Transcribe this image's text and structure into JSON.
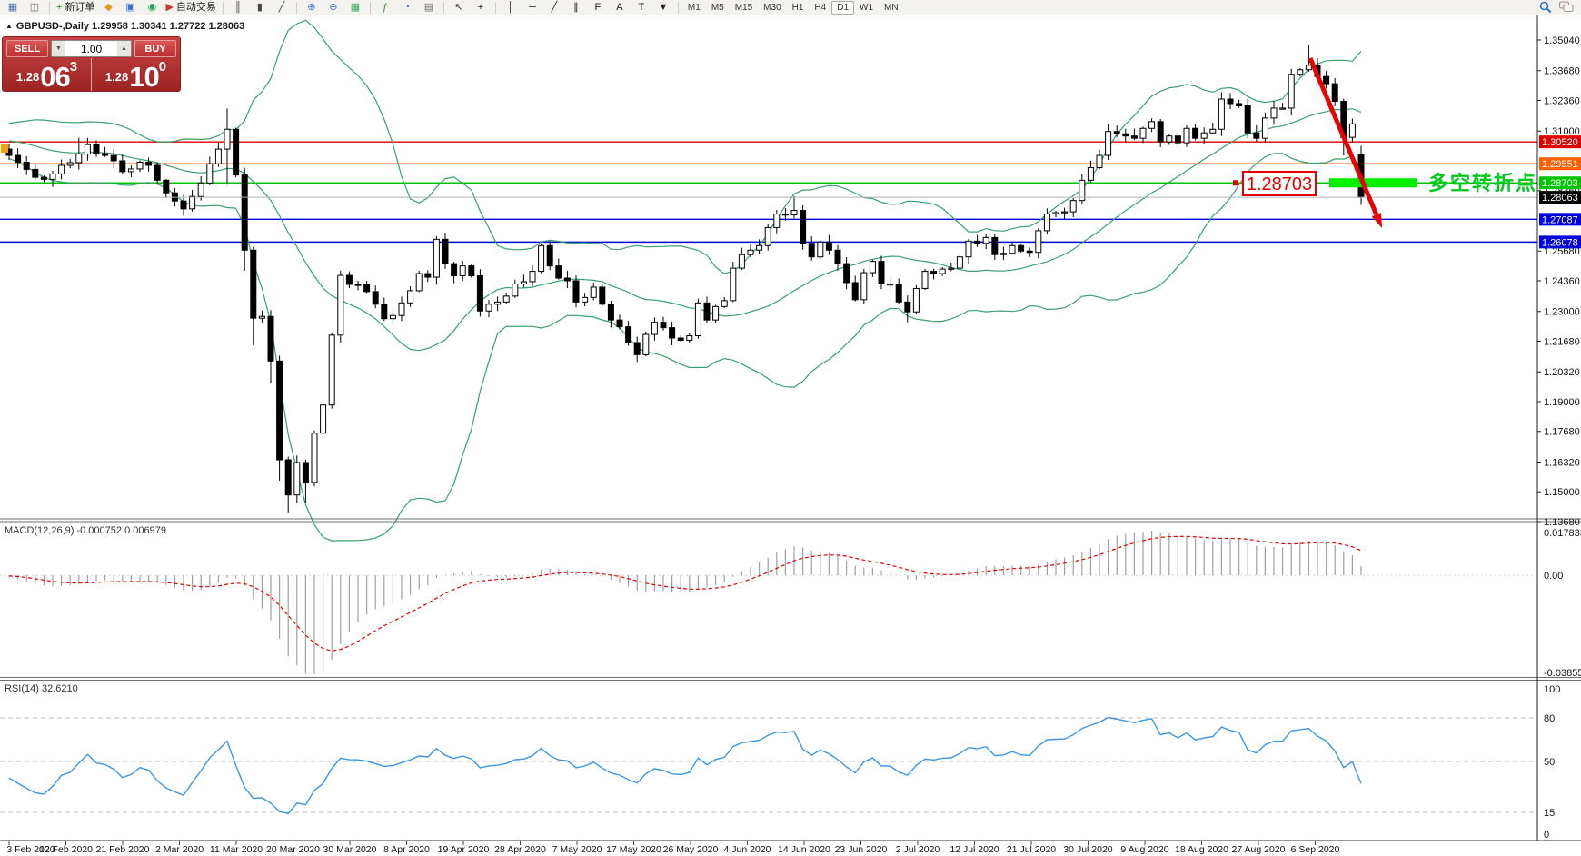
{
  "toolbar": {
    "items": [
      {
        "name": "new-chart",
        "glyph": "▦",
        "color": "#4a6fa5"
      },
      {
        "name": "chart-profiles",
        "glyph": "◫",
        "color": "#6b6b6b"
      },
      {
        "sep": true
      },
      {
        "name": "new-order",
        "glyph": "+",
        "color": "#1a9e1a",
        "label": "新订单"
      },
      {
        "name": "alerts",
        "glyph": "◆",
        "color": "#d8a017"
      },
      {
        "name": "terminal",
        "glyph": "▣",
        "color": "#3b6fd4"
      },
      {
        "name": "signals",
        "glyph": "◉",
        "color": "#2aa05a"
      },
      {
        "name": "autotrading",
        "glyph": "▶",
        "color": "#cc3333",
        "label": "自动交易"
      },
      {
        "sep": true
      },
      {
        "name": "bar-chart-mode",
        "glyph": "║",
        "color": "#444444"
      },
      {
        "name": "candle-chart-mode",
        "glyph": "▮",
        "color": "#444444"
      },
      {
        "name": "line-chart-mode",
        "glyph": "╱",
        "color": "#444444"
      },
      {
        "sep": true
      },
      {
        "name": "zoom-in",
        "glyph": "⊕",
        "color": "#3b6fd4"
      },
      {
        "name": "zoom-out",
        "glyph": "⊖",
        "color": "#3b6fd4"
      },
      {
        "name": "tile-windows",
        "glyph": "▦",
        "color": "#2aa05a"
      },
      {
        "sep": true
      },
      {
        "name": "indicators",
        "glyph": "ƒ",
        "color": "#1a9e1a"
      },
      {
        "name": "periods",
        "glyph": "◔",
        "color": "#3b6fd4"
      },
      {
        "name": "templates",
        "glyph": "▤",
        "color": "#6b6b6b"
      },
      {
        "sep": true
      },
      {
        "name": "cursor",
        "glyph": "↖",
        "color": "#222222"
      },
      {
        "name": "crosshair",
        "glyph": "+",
        "color": "#222222"
      },
      {
        "sep": true
      },
      {
        "name": "vertical-line-tool",
        "glyph": "│",
        "color": "#222222"
      },
      {
        "name": "horizontal-line-tool",
        "glyph": "─",
        "color": "#222222"
      },
      {
        "name": "trendline-tool",
        "glyph": "╱",
        "color": "#222222"
      },
      {
        "name": "channel-tool",
        "glyph": "∥",
        "color": "#222222"
      },
      {
        "name": "fibonacci-tool",
        "glyph": "F",
        "color": "#222222"
      },
      {
        "name": "text-tool",
        "glyph": "A",
        "color": "#222222"
      },
      {
        "name": "label-tool",
        "glyph": "T",
        "color": "#222222"
      },
      {
        "name": "arrows-tool",
        "glyph": "▼",
        "color": "#222222"
      },
      {
        "sep": true
      }
    ],
    "timeframes": [
      {
        "label": "M1"
      },
      {
        "label": "M5"
      },
      {
        "label": "M15"
      },
      {
        "label": "M30"
      },
      {
        "label": "H1"
      },
      {
        "label": "H4"
      },
      {
        "label": "D1",
        "active": true
      },
      {
        "label": "W1"
      },
      {
        "label": "MN"
      }
    ]
  },
  "chart_header": {
    "marker": "▲",
    "text": "GBPUSD-,Daily 1.29958 1.30341 1.27722 1.28063"
  },
  "trade_panel": {
    "sell_label": "SELL",
    "buy_label": "BUY",
    "volume": "1.00",
    "sell_small": "1.28",
    "sell_big": "06",
    "sell_sup": "3",
    "buy_small": "1.28",
    "buy_big": "10",
    "buy_sup": "0"
  },
  "chart_data": {
    "type": "candlestick",
    "symbol": "GBPUSD",
    "timeframe": "Daily",
    "y_ticks": [
      1.3504,
      1.3368,
      1.3236,
      1.31,
      1.2836,
      1.2568,
      1.2436,
      1.23,
      1.2168,
      1.2032,
      1.19,
      1.1768,
      1.1632,
      1.15,
      1.1368
    ],
    "x_labels": [
      "3 Feb 2020",
      "12 Feb 2020",
      "21 Feb 2020",
      "2 Mar 2020",
      "11 Mar 2020",
      "20 Mar 2020",
      "30 Mar 2020",
      "8 Apr 2020",
      "19 Apr 2020",
      "28 Apr 2020",
      "7 May 2020",
      "17 May 2020",
      "26 May 2020",
      "4 Jun 2020",
      "14 Jun 2020",
      "23 Jun 2020",
      "2 Jul 2020",
      "12 Jul 2020",
      "21 Jul 2020",
      "30 Jul 2020",
      "9 Aug 2020",
      "18 Aug 2020",
      "27 Aug 2020",
      "6 Sep 2020"
    ],
    "pre_closes": [
      1.3065,
      1.3085,
      1.31,
      1.3115,
      1.309,
      1.306,
      1.3025,
      1.301,
      1.2985,
      1.301,
      1.3035,
      1.3052,
      1.3088,
      1.3102,
      1.311,
      1.3085,
      1.3058,
      1.3042,
      1.302
    ],
    "closes": [
      1.2992,
      1.2962,
      1.293,
      1.2895,
      1.2886,
      1.291,
      1.2948,
      1.296,
      1.2998,
      1.304,
      1.3,
      1.2992,
      1.2968,
      1.292,
      1.2932,
      1.2962,
      1.2948,
      1.2882,
      1.2826,
      1.279,
      1.2755,
      1.281,
      1.287,
      1.2955,
      1.302,
      1.3108,
      1.2905,
      1.2572,
      1.227,
      1.2278,
      1.208,
      1.1642,
      1.1486,
      1.163,
      1.1542,
      1.176,
      1.1885,
      1.2195,
      1.246,
      1.242,
      1.2418,
      1.2388,
      1.2332,
      1.2268,
      1.2282,
      1.2338,
      1.2392,
      1.2468,
      1.2452,
      1.262,
      1.2512,
      1.2458,
      1.2502,
      1.2458,
      1.2302,
      1.2332,
      1.2342,
      1.2368,
      1.2422,
      1.2432,
      1.2478,
      1.2592,
      1.2502,
      1.2448,
      1.2436,
      1.2342,
      1.2362,
      1.2408,
      1.2332,
      1.2262,
      1.2232,
      1.2162,
      1.2108,
      1.2198,
      1.2252,
      1.2228,
      1.2182,
      1.2172,
      1.2192,
      1.2338,
      1.2262,
      1.2322,
      1.2348,
      1.2492,
      1.2552,
      1.2572,
      1.2592,
      1.2672,
      1.2732,
      1.2728,
      1.2748,
      1.2602,
      1.2542,
      1.2608,
      1.2572,
      1.2512,
      1.2428,
      1.2352,
      1.2472,
      1.2522,
      1.2422,
      1.2422,
      1.2342,
      1.2298,
      1.2402,
      1.2478,
      1.2468,
      1.2488,
      1.2492,
      1.2542,
      1.2612,
      1.2602,
      1.2628,
      1.2552,
      1.2558,
      1.2592,
      1.2568,
      1.2562,
      1.2658,
      1.2732,
      1.2738,
      1.2742,
      1.2792,
      1.2882,
      1.2938,
      1.2992,
      1.3098,
      1.3088,
      1.3078,
      1.3068,
      1.3112,
      1.3142,
      1.3052,
      1.3078,
      1.3048,
      1.3112,
      1.3068,
      1.3092,
      1.3108,
      1.3242,
      1.3222,
      1.3212,
      1.3092,
      1.3068,
      1.3158,
      1.3202,
      1.3202,
      1.3352,
      1.3372,
      1.3392,
      1.3342,
      1.331,
      1.3232,
      1.3072,
      1.3132,
      1.2806
    ],
    "wick_overrides": {
      "8": {
        "h": 1.307
      },
      "25": {
        "h": 1.32,
        "l": 1.2862
      },
      "27": {
        "l": 1.248
      },
      "28": {
        "l": 1.215
      },
      "30": {
        "l": 1.198
      },
      "31": {
        "l": 1.155
      },
      "32": {
        "l": 1.1409
      },
      "34": {
        "l": 1.1452
      },
      "72": {
        "l": 1.2076
      },
      "90": {
        "h": 1.2812
      },
      "103": {
        "l": 1.2252
      },
      "149": {
        "h": 1.348
      },
      "153": {
        "l": 1.2992
      }
    },
    "last_candle": {
      "o": 1.29958,
      "h": 1.30341,
      "l": 1.27722,
      "c": 1.28063
    },
    "levels": [
      {
        "value": "1.30520",
        "price": 1.3052,
        "color": "#e00000"
      },
      {
        "value": "1.29551",
        "price": 1.29551,
        "color": "#ff5f00"
      },
      {
        "value": "1.28703",
        "price": 1.28703,
        "color": "#00c400"
      },
      {
        "value": "1.27087",
        "price": 1.27087,
        "color": "#0000dd"
      },
      {
        "value": "1.26078",
        "price": 1.26078,
        "color": "#0000dd"
      }
    ],
    "current_price": {
      "value": "1.28063",
      "price": 1.28063,
      "badge_color": "#000000",
      "line_color": "#b2b2b2"
    },
    "annotations": {
      "price_box_text": "1.28703",
      "cn_text": "多空转折点",
      "cn_color": "#00c81e",
      "highlight_color": "#00ee00",
      "arrow_color": "#e80000"
    },
    "indicators": {
      "bollinger": {
        "period": 20,
        "deviation": 2,
        "color": "#3aa06e"
      },
      "macd": {
        "text": "MACD(12,26,9) -0.000752 0.006979",
        "axis_labels": [
          "0.017833",
          "0.00",
          "-0.038559"
        ],
        "hist_color": "#a0a0a0",
        "signal_color": "#e00000"
      },
      "rsi": {
        "text": "RSI(14) 32.6210",
        "levels": [
          100,
          80,
          50,
          15,
          0
        ],
        "dashed_levels": [
          80,
          50,
          15
        ],
        "color": "#3d97e0"
      }
    }
  }
}
